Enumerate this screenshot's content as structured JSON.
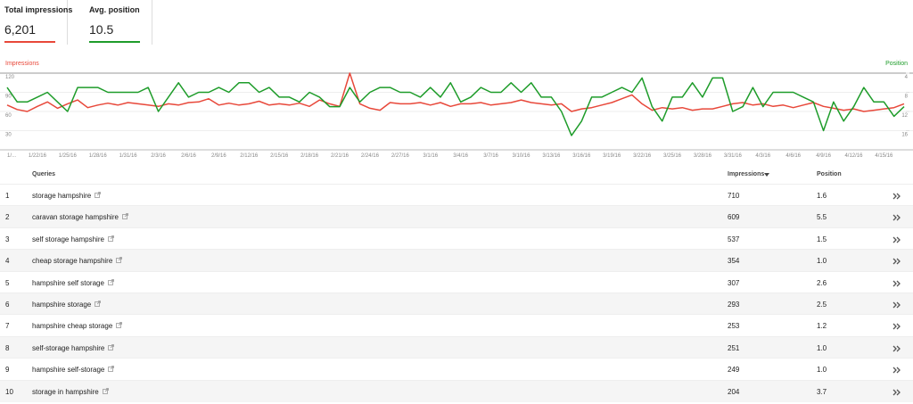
{
  "metrics": [
    {
      "label": "Total impressions",
      "value": "6,201"
    },
    {
      "label": "Avg. position",
      "value": "10.5"
    }
  ],
  "chart_data": {
    "type": "line",
    "categories": [
      "1/...",
      null,
      null,
      "1/22/16",
      null,
      null,
      "1/25/16",
      null,
      null,
      "1/28/16",
      null,
      null,
      "1/31/16",
      null,
      null,
      "2/3/16",
      null,
      null,
      "2/6/16",
      null,
      null,
      "2/9/16",
      null,
      null,
      "2/12/16",
      null,
      null,
      "2/15/16",
      null,
      null,
      "2/18/16",
      null,
      null,
      "2/21/16",
      null,
      null,
      "2/24/16",
      null,
      null,
      "2/27/16",
      null,
      null,
      "3/1/16",
      null,
      null,
      "3/4/16",
      null,
      null,
      "3/7/16",
      null,
      null,
      "3/10/16",
      null,
      null,
      "3/13/16",
      null,
      null,
      "3/16/16",
      null,
      null,
      "3/19/16",
      null,
      null,
      "3/22/16",
      null,
      null,
      "3/25/16",
      null,
      null,
      "3/28/16",
      null,
      null,
      "3/31/16",
      null,
      null,
      "4/3/16",
      null,
      null,
      "4/6/16",
      null,
      null,
      "4/9/16",
      null,
      null,
      "4/12/16",
      null,
      null,
      "4/15/16",
      null,
      null
    ],
    "ylim": [
      0,
      120
    ],
    "yticks": [
      30,
      60,
      90,
      120
    ],
    "y2lim": [
      4,
      20
    ],
    "y2ticks": [
      4,
      8,
      12,
      16
    ],
    "y2_inverted": true,
    "series": [
      {
        "name": "Impressions",
        "color": "#e8483a",
        "values": [
          70,
          63,
          60,
          68,
          75,
          65,
          72,
          78,
          66,
          70,
          73,
          70,
          74,
          72,
          70,
          68,
          72,
          70,
          74,
          75,
          80,
          70,
          73,
          70,
          72,
          76,
          70,
          72,
          70,
          73,
          68,
          78,
          72,
          68,
          120,
          72,
          65,
          62,
          74,
          72,
          72,
          74,
          70,
          74,
          68,
          72,
          72,
          74,
          70,
          72,
          74,
          78,
          74,
          72,
          70,
          72,
          60,
          64,
          66,
          70,
          74,
          80,
          86,
          72,
          62,
          66,
          64,
          66,
          62,
          64,
          64,
          68,
          72,
          74,
          70,
          72,
          68,
          70,
          66,
          70,
          74,
          68,
          65,
          62,
          64,
          60,
          62,
          64,
          66,
          72
        ]
      },
      {
        "name": "Position",
        "color": "#1e9c2a",
        "axis": "y2",
        "values": [
          7,
          10,
          10,
          9,
          8,
          10,
          12,
          7,
          7,
          7,
          8,
          8,
          8,
          8,
          7,
          12,
          9,
          6,
          9,
          8,
          8,
          7,
          8,
          6,
          6,
          8,
          7,
          9,
          9,
          10,
          8,
          9,
          11,
          11,
          7,
          10,
          8,
          7,
          7,
          8,
          8,
          9,
          7,
          9,
          6,
          10,
          9,
          7,
          8,
          8,
          6,
          8,
          6,
          9,
          9,
          12,
          17,
          14,
          9,
          9,
          8,
          7,
          8,
          5,
          11,
          14,
          9,
          9,
          6,
          9,
          5,
          5,
          12,
          11,
          7,
          11,
          8,
          8,
          8,
          9,
          10,
          16,
          10,
          14,
          11,
          7,
          10,
          10,
          13,
          11
        ]
      }
    ]
  },
  "table": {
    "headers": [
      "Queries",
      "Impressions",
      "Position"
    ],
    "rows": [
      [
        "1",
        "storage hampshire",
        "710",
        "1.6"
      ],
      [
        "2",
        "caravan storage hampshire",
        "609",
        "5.5"
      ],
      [
        "3",
        "self storage hampshire",
        "537",
        "1.5"
      ],
      [
        "4",
        "cheap storage hampshire",
        "354",
        "1.0"
      ],
      [
        "5",
        "hampshire self storage",
        "307",
        "2.6"
      ],
      [
        "6",
        "hampshire storage",
        "293",
        "2.5"
      ],
      [
        "7",
        "hampshire cheap storage",
        "253",
        "1.2"
      ],
      [
        "8",
        "self-storage hampshire",
        "251",
        "1.0"
      ],
      [
        "9",
        "hampshire self-storage",
        "249",
        "1.0"
      ],
      [
        "10",
        "storage in hampshire",
        "204",
        "3.7"
      ]
    ]
  }
}
